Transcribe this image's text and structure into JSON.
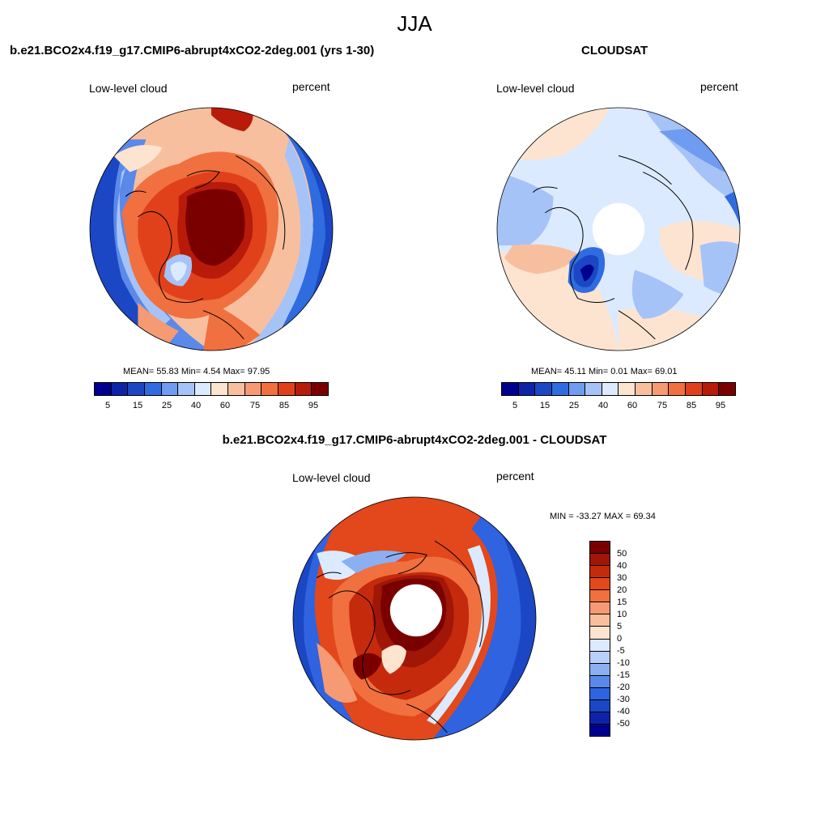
{
  "season": "JJA",
  "colors": {
    "scale_low_high": [
      "#00008f",
      "#0d24a8",
      "#1b47c4",
      "#2f6ce0",
      "#6f9bf0",
      "#a6c3f7",
      "#dceaff",
      "#fde4d0",
      "#f8bf9f",
      "#f59a73",
      "#f0703f",
      "#e0411b",
      "#b81b0a",
      "#7a0000"
    ],
    "scale_diff": [
      "#7a0000",
      "#a01607",
      "#c52a0c",
      "#e2481b",
      "#f0703f",
      "#f59a73",
      "#f8bf9f",
      "#fde4d0",
      "#dceaff",
      "#b8cff7",
      "#8bb0f2",
      "#5a89ea",
      "#2f63e0",
      "#1b47c4",
      "#0d24a8",
      "#00008f"
    ],
    "land_outline": "#000000"
  },
  "panels": {
    "model": {
      "title": "b.e21.BCO2x4.f19_g17.CMIP6-abrupt4xCO2-2deg.001 (yrs 1-30)",
      "left_label": "Low-level cloud",
      "right_label": "percent",
      "stats": "MEAN=  55.83  Min=   4.54  Max=  97.95",
      "colorbar_labels": [
        "5",
        "15",
        "25",
        "40",
        "60",
        "75",
        "85",
        "95"
      ]
    },
    "obs": {
      "title": "CLOUDSAT",
      "left_label": "Low-level cloud",
      "right_label": "percent",
      "stats": "MEAN=  45.11  Min=   0.01  Max=  69.01",
      "colorbar_labels": [
        "5",
        "15",
        "25",
        "40",
        "60",
        "75",
        "85",
        "95"
      ]
    },
    "diff": {
      "title": "b.e21.BCO2x4.f19_g17.CMIP6-abrupt4xCO2-2deg.001 - CLOUDSAT",
      "left_label": "Low-level cloud",
      "right_label": "percent",
      "stats": "MIN = -33.27 MAX =  69.34",
      "colorbar_labels": [
        "50",
        "40",
        "30",
        "20",
        "15",
        "10",
        "5",
        "0",
        "-5",
        "-10",
        "-15",
        "-20",
        "-30",
        "-40",
        "-50"
      ]
    }
  }
}
